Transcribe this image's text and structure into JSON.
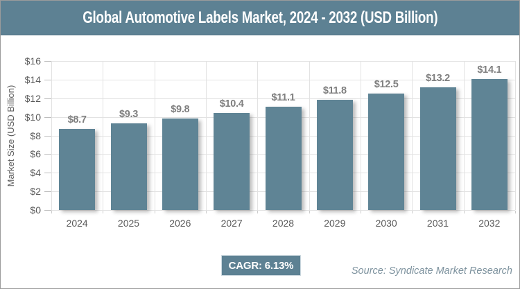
{
  "header": {
    "title": "Global Automotive Labels Market, 2024 - 2032 (USD Billion)"
  },
  "chart_data": {
    "type": "bar",
    "title": "Global Automotive Labels Market, 2024 - 2032 (USD Billion)",
    "categories": [
      "2024",
      "2025",
      "2026",
      "2027",
      "2028",
      "2029",
      "2030",
      "2031",
      "2032"
    ],
    "values": [
      8.7,
      9.3,
      9.8,
      10.4,
      11.1,
      11.8,
      12.5,
      13.2,
      14.1
    ],
    "value_labels": [
      "$8.7",
      "$9.3",
      "$9.8",
      "$10.4",
      "$11.1",
      "$11.8",
      "$12.5",
      "$13.2",
      "$14.1"
    ],
    "xlabel": "",
    "ylabel": "Market Size (USD Billion)",
    "ylim": [
      0,
      16
    ],
    "ytick_step": 2,
    "yticks": [
      "$16",
      "$14",
      "$12",
      "$10",
      "$8",
      "$6",
      "$4",
      "$2",
      "$0"
    ],
    "grid": true,
    "legend": "none"
  },
  "footer": {
    "cagr_label": "CAGR: 6.13%",
    "source": "Source: Syndicate Market Research"
  },
  "colors": {
    "header_bg": "#5d8193",
    "bar": "#5f8495",
    "badge_bg": "#5d8193",
    "grid": "#e2e2e2",
    "axis_text": "#595959",
    "value_label": "#7f7f7f",
    "source_text": "#7d929e",
    "outer_border": "#9b9b9b"
  }
}
